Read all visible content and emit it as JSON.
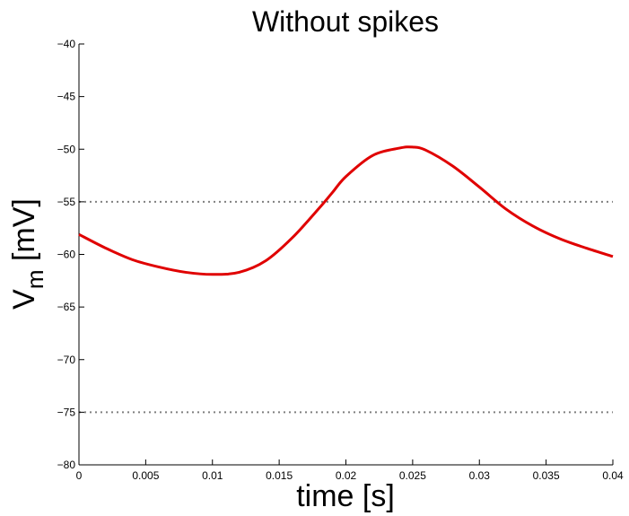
{
  "chart_data": {
    "type": "line",
    "title": "Without spikes",
    "xlabel": "time [s]",
    "ylabel": "V",
    "ylabel_subscript": "m",
    "ylabel_unit": " [mV]",
    "xlim": [
      0,
      0.04
    ],
    "ylim": [
      -80,
      -40
    ],
    "xticks": [
      0,
      0.005,
      0.01,
      0.015,
      0.02,
      0.025,
      0.03,
      0.035,
      0.04
    ],
    "xtick_labels": [
      "0",
      "0.005",
      "0.01",
      "0.015",
      "0.02",
      "0.025",
      "0.03",
      "0.035",
      "0.04"
    ],
    "yticks": [
      -80,
      -75,
      -70,
      -65,
      -60,
      -55,
      -50,
      -45,
      -40
    ],
    "ytick_labels": [
      "−80",
      "−75",
      "−70",
      "−65",
      "−60",
      "−55",
      "−50",
      "−45",
      "−40"
    ],
    "grid": false,
    "series": [
      {
        "color": "#e00000",
        "x": [
          0,
          0.002,
          0.004,
          0.006,
          0.008,
          0.01,
          0.012,
          0.014,
          0.016,
          0.018,
          0.019,
          0.02,
          0.022,
          0.024,
          0.025,
          0.026,
          0.028,
          0.03,
          0.032,
          0.034,
          0.036,
          0.038,
          0.04
        ],
        "y": [
          -58.1,
          -59.4,
          -60.5,
          -61.2,
          -61.7,
          -61.9,
          -61.7,
          -60.6,
          -58.4,
          -55.6,
          -54.1,
          -52.6,
          -50.6,
          -49.9,
          -49.8,
          -50.1,
          -51.6,
          -53.6,
          -55.7,
          -57.3,
          -58.5,
          -59.4,
          -60.2
        ]
      }
    ],
    "reference_lines": [
      {
        "y": -55,
        "style": "dotted",
        "color": "#808080"
      },
      {
        "y": -75,
        "style": "dotted",
        "color": "#808080"
      }
    ]
  }
}
